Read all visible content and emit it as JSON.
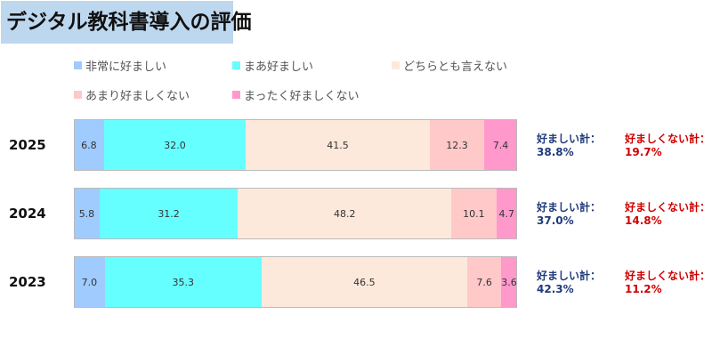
{
  "title": "デジタル教科書導入の評価",
  "chart_data": {
    "type": "bar",
    "orientation": "horizontal-stacked-100",
    "title": "デジタル教科書導入の評価",
    "categories": [
      "2025",
      "2024",
      "2023"
    ],
    "series": [
      {
        "name": "非常に好ましい",
        "color": "#9fcbff",
        "values": [
          6.8,
          5.8,
          7.0
        ]
      },
      {
        "name": "まあ好ましい",
        "color": "#66ffff",
        "values": [
          32.0,
          31.2,
          35.3
        ]
      },
      {
        "name": "どちらとも言えない",
        "color": "#fde9dc",
        "values": [
          41.5,
          48.2,
          46.5
        ]
      },
      {
        "name": "あまり好ましくない",
        "color": "#ffc9c9",
        "values": [
          12.3,
          10.1,
          7.6
        ]
      },
      {
        "name": "まったく好ましくない",
        "color": "#ff99cc",
        "values": [
          7.4,
          4.7,
          3.6
        ]
      }
    ],
    "legend_placement": "top",
    "totals": [
      {
        "pos_label": "好ましい計：",
        "pos": "38.8%",
        "neg_label": "好ましくない計：",
        "neg": "19.7%"
      },
      {
        "pos_label": "好ましい計：",
        "pos": "37.0%",
        "neg_label": "好ましくない計：",
        "neg": "14.8%"
      },
      {
        "pos_label": "好ましい計：",
        "pos": "42.3%",
        "neg_label": "好ましくない計：",
        "neg": "11.2%"
      }
    ]
  }
}
